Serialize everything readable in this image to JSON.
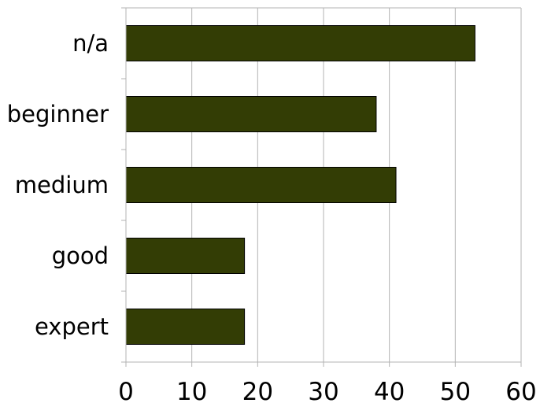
{
  "chart_data": {
    "type": "bar",
    "orientation": "horizontal",
    "categories": [
      "n/a",
      "beginner",
      "medium",
      "good",
      "expert"
    ],
    "values": [
      53,
      38,
      41,
      18,
      18
    ],
    "title": "",
    "xlabel": "",
    "ylabel": "",
    "xlim": [
      0,
      60
    ],
    "x_ticks": [
      "0",
      "10",
      "20",
      "30",
      "40",
      "50",
      "60"
    ],
    "grid": "vertical",
    "legend": "none",
    "bar_color": "#333d05",
    "bar_edge_color": "#000000",
    "grid_color": "#b3b3b3"
  }
}
